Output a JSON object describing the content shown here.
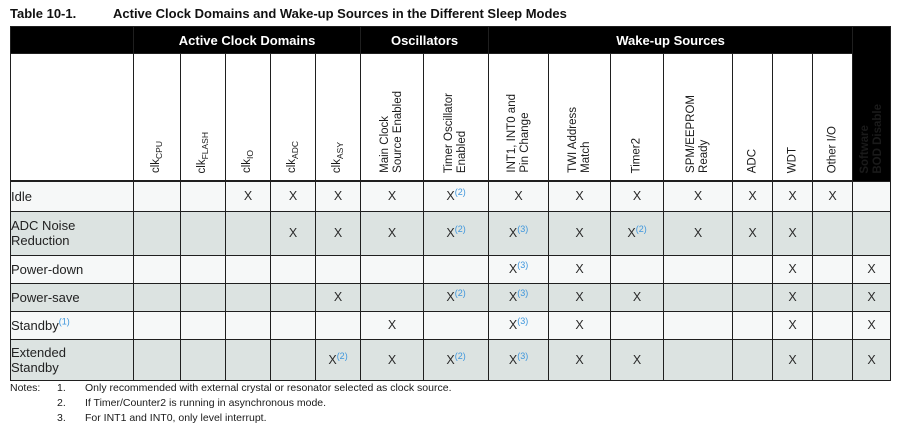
{
  "title": {
    "label": "Table 10-1.",
    "text": "Active Clock Domains and Wake-up Sources in the Different Sleep Modes"
  },
  "table": {
    "groups": [
      {
        "label": "Active Clock Domains",
        "span": 5
      },
      {
        "label": "Oscillators",
        "span": 2
      },
      {
        "label": "Wake-up Sources",
        "span": 7
      }
    ],
    "columns": [
      {
        "name": "clk-cpu",
        "main": "clk",
        "sub": "CPU"
      },
      {
        "name": "clk-flash",
        "main": "clk",
        "sub": "FLASH"
      },
      {
        "name": "clk-io",
        "main": "clk",
        "sub": "IO"
      },
      {
        "name": "clk-adc",
        "main": "clk",
        "sub": "ADC"
      },
      {
        "name": "clk-asy",
        "main": "clk",
        "sub": "ASY"
      },
      {
        "name": "main-clock-source-enabled",
        "lines": [
          "Main Clock",
          "Source Enabled"
        ]
      },
      {
        "name": "timer-oscillator-enabled",
        "lines": [
          "Timer Oscillator",
          "Enabled"
        ]
      },
      {
        "name": "int1-int0-pin-change",
        "lines": [
          "INT1, INT0 and",
          "Pin Change"
        ]
      },
      {
        "name": "twi-address-match",
        "lines": [
          "TWI Address",
          "Match"
        ]
      },
      {
        "name": "timer2",
        "lines": [
          "Timer2"
        ]
      },
      {
        "name": "spm-eeprom-ready",
        "lines": [
          "SPM/EEPROM",
          "Ready"
        ]
      },
      {
        "name": "adc",
        "lines": [
          "ADC"
        ]
      },
      {
        "name": "wdt",
        "lines": [
          "WDT"
        ]
      },
      {
        "name": "other-io",
        "lines": [
          "Other I/O"
        ]
      },
      {
        "name": "software-bod-disable",
        "lines": [
          "Software",
          "BOD Disable"
        ]
      }
    ],
    "rows": [
      {
        "label": "Idle",
        "label_note": "",
        "cells": [
          "",
          "",
          "X",
          "X",
          "X",
          "X",
          "X(2)",
          "X",
          "X",
          "X",
          "X",
          "X",
          "X",
          "X",
          ""
        ]
      },
      {
        "label": "ADC Noise\nReduction",
        "label_note": "",
        "cells": [
          "",
          "",
          "",
          "X",
          "X",
          "X",
          "X(2)",
          "X(3)",
          "X",
          "X(2)",
          "X",
          "X",
          "X",
          "",
          ""
        ]
      },
      {
        "label": "Power-down",
        "label_note": "",
        "cells": [
          "",
          "",
          "",
          "",
          "",
          "",
          "",
          "X(3)",
          "X",
          "",
          "",
          "",
          "X",
          "",
          "X"
        ]
      },
      {
        "label": "Power-save",
        "label_note": "",
        "cells": [
          "",
          "",
          "",
          "",
          "X",
          "",
          "X(2)",
          "X(3)",
          "X",
          "X",
          "",
          "",
          "X",
          "",
          "X"
        ]
      },
      {
        "label": "Standby",
        "label_note": "(1)",
        "cells": [
          "",
          "",
          "",
          "",
          "",
          "X",
          "",
          "X(3)",
          "X",
          "",
          "",
          "",
          "X",
          "",
          "X"
        ]
      },
      {
        "label": "Extended\nStandby",
        "label_note": "",
        "cells": [
          "",
          "",
          "",
          "",
          "X(2)",
          "X",
          "X(2)",
          "X(3)",
          "X",
          "X",
          "",
          "",
          "X",
          "",
          "X"
        ]
      }
    ]
  },
  "notes": {
    "label": "Notes:",
    "items": [
      {
        "num": "1.",
        "text": "Only recommended with external crystal or resonator selected as clock source."
      },
      {
        "num": "2.",
        "text": "If Timer/Counter2 is running in asynchronous mode."
      },
      {
        "num": "3.",
        "text": "For INT1 and INT0, only level interrupt."
      }
    ]
  },
  "colors": {
    "band_bg": "#000000",
    "band_text": "#ffffff",
    "row_light": "#f6f8f8",
    "row_shaded": "#dce3e1",
    "border": "#1f1f1f",
    "footnote_blue": "#3e96dc"
  }
}
